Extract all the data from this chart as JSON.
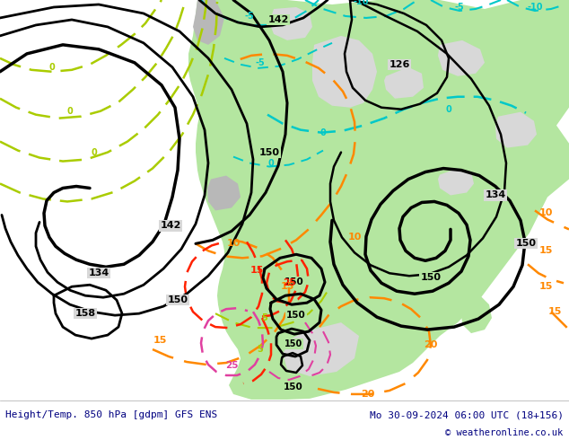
{
  "title_left": "Height/Temp. 850 hPa [gdpm] GFS ENS",
  "title_right": "Mo 30-09-2024 06:00 UTC (18+156)",
  "copyright": "© weatheronline.co.uk",
  "ocean_color": "#d8d8d8",
  "land_green": "#b4e6a0",
  "land_gray": "#b8b8b8",
  "bottom_bar_color": "#ffffff",
  "title_color": "#000080",
  "fig_width": 6.34,
  "fig_height": 4.9,
  "dpi": 100
}
